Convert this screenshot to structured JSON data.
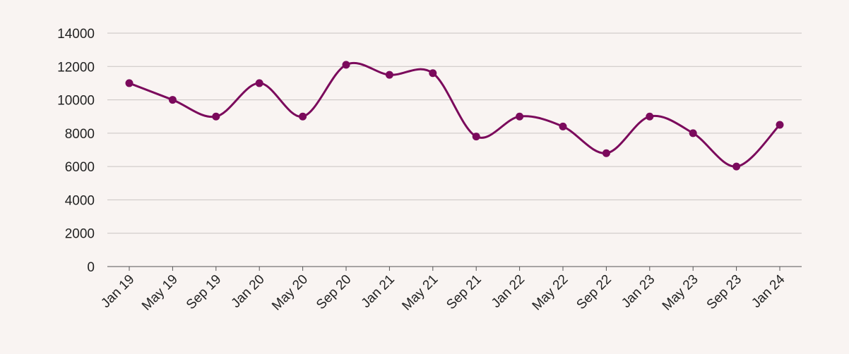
{
  "colors": {
    "background": "#f9f4f2",
    "line": "#7b0a5c",
    "point": "#7b0a5c",
    "grid": "#c9c4c2",
    "axis": "#555555",
    "text": "#222222"
  },
  "chart_data": {
    "type": "line",
    "title": "",
    "xlabel": "",
    "ylabel": "",
    "categories": [
      "Jan 19",
      "May 19",
      "Sep 19",
      "Jan 20",
      "May 20",
      "Sep 20",
      "Jan 21",
      "May 21",
      "Sep 21",
      "Jan 22",
      "May 22",
      "Sep 22",
      "Jan 23",
      "May 23",
      "Sep 23",
      "Jan 24"
    ],
    "series": [
      {
        "values": [
          11000,
          10000,
          9000,
          11000,
          9000,
          12100,
          11500,
          11600,
          7800,
          9000,
          8400,
          6800,
          9000,
          8000,
          6000,
          8500
        ]
      }
    ],
    "ylim": [
      0,
      14000
    ],
    "yticks": [
      "0",
      "2000",
      "4000",
      "6000",
      "8000",
      "10000",
      "12000",
      "14000"
    ],
    "grid": true,
    "smooth": true,
    "legend": "none"
  }
}
